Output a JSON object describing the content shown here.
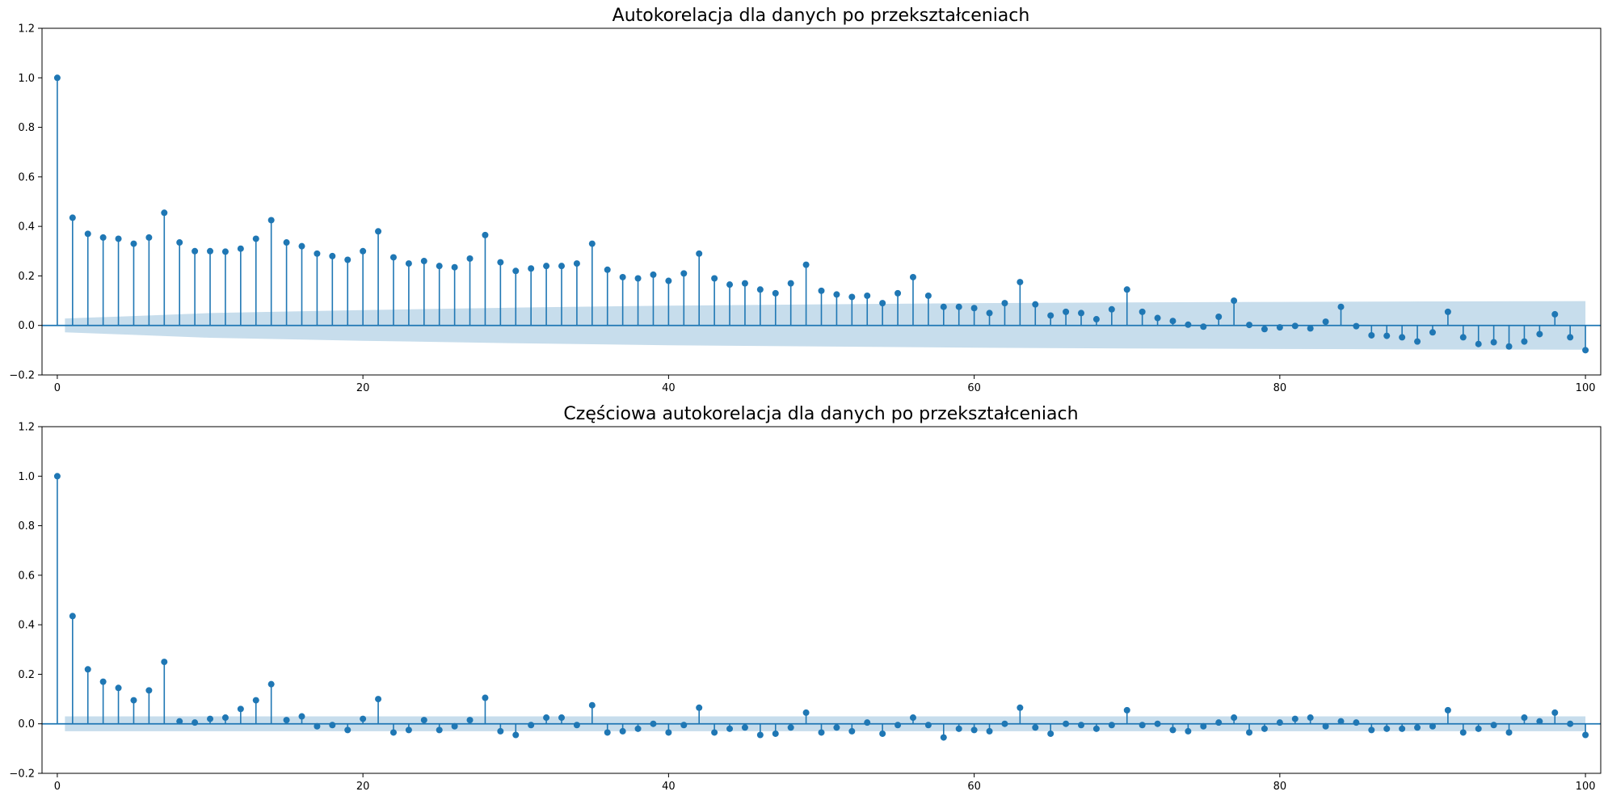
{
  "chart_data": [
    {
      "type": "stem",
      "title": "Autokorelacja dla danych po przekształceniach",
      "xlabel": "",
      "ylabel": "",
      "xlim": [
        -1,
        101
      ],
      "ylim": [
        -0.2,
        1.2
      ],
      "xticks": [
        0,
        20,
        40,
        60,
        80,
        100
      ],
      "yticks": [
        -0.2,
        0.0,
        0.2,
        0.4,
        0.6,
        0.8,
        1.0,
        1.2
      ],
      "ytick_labels": [
        "−0.2",
        "0.0",
        "0.2",
        "0.4",
        "0.6",
        "0.8",
        "1.0",
        "1.2"
      ],
      "grid": false,
      "color": "#1f77b4",
      "x": [
        0,
        1,
        2,
        3,
        4,
        5,
        6,
        7,
        8,
        9,
        10,
        11,
        12,
        13,
        14,
        15,
        16,
        17,
        18,
        19,
        20,
        21,
        22,
        23,
        24,
        25,
        26,
        27,
        28,
        29,
        30,
        31,
        32,
        33,
        34,
        35,
        36,
        37,
        38,
        39,
        40,
        41,
        42,
        43,
        44,
        45,
        46,
        47,
        48,
        49,
        50,
        51,
        52,
        53,
        54,
        55,
        56,
        57,
        58,
        59,
        60,
        61,
        62,
        63,
        64,
        65,
        66,
        67,
        68,
        69,
        70,
        71,
        72,
        73,
        74,
        75,
        76,
        77,
        78,
        79,
        80,
        81,
        82,
        83,
        84,
        85,
        86,
        87,
        88,
        89,
        90,
        91,
        92,
        93,
        94,
        95,
        96,
        97,
        98,
        99,
        100
      ],
      "values": [
        1.0,
        0.435,
        0.37,
        0.355,
        0.35,
        0.33,
        0.355,
        0.455,
        0.335,
        0.3,
        0.3,
        0.298,
        0.31,
        0.35,
        0.425,
        0.335,
        0.32,
        0.29,
        0.28,
        0.265,
        0.3,
        0.38,
        0.275,
        0.25,
        0.26,
        0.24,
        0.235,
        0.27,
        0.365,
        0.255,
        0.22,
        0.23,
        0.24,
        0.24,
        0.25,
        0.33,
        0.225,
        0.195,
        0.19,
        0.205,
        0.18,
        0.21,
        0.29,
        0.19,
        0.165,
        0.17,
        0.145,
        0.13,
        0.17,
        0.245,
        0.14,
        0.125,
        0.115,
        0.12,
        0.09,
        0.13,
        0.195,
        0.12,
        0.075,
        0.075,
        0.07,
        0.05,
        0.09,
        0.175,
        0.085,
        0.04,
        0.055,
        0.05,
        0.025,
        0.065,
        0.145,
        0.055,
        0.03,
        0.018,
        0.003,
        -0.005,
        0.035,
        0.1,
        0.002,
        -0.015,
        -0.008,
        -0.002,
        -0.012,
        0.015,
        0.075,
        -0.003,
        -0.04,
        -0.042,
        -0.048,
        -0.065,
        -0.028,
        0.055,
        -0.048,
        -0.075,
        -0.068,
        -0.085,
        -0.065,
        -0.035,
        0.045,
        -0.048,
        -0.1
      ],
      "confidence_upper": [
        [
          0.5,
          0.028
        ],
        [
          5,
          0.038
        ],
        [
          10,
          0.05
        ],
        [
          20,
          0.062
        ],
        [
          30,
          0.072
        ],
        [
          40,
          0.08
        ],
        [
          50,
          0.085
        ],
        [
          60,
          0.09
        ],
        [
          70,
          0.093
        ],
        [
          80,
          0.095
        ],
        [
          90,
          0.097
        ],
        [
          100,
          0.098
        ]
      ]
    },
    {
      "type": "stem",
      "title": "Częściowa autokorelacja dla danych po przekształceniach",
      "xlabel": "",
      "ylabel": "",
      "xlim": [
        -1,
        101
      ],
      "ylim": [
        -0.2,
        1.2
      ],
      "xticks": [
        0,
        20,
        40,
        60,
        80,
        100
      ],
      "yticks": [
        -0.2,
        0.0,
        0.2,
        0.4,
        0.6,
        0.8,
        1.0,
        1.2
      ],
      "ytick_labels": [
        "−0.2",
        "0.0",
        "0.2",
        "0.4",
        "0.6",
        "0.8",
        "1.0",
        "1.2"
      ],
      "grid": false,
      "color": "#1f77b4",
      "x": [
        0,
        1,
        2,
        3,
        4,
        5,
        6,
        7,
        8,
        9,
        10,
        11,
        12,
        13,
        14,
        15,
        16,
        17,
        18,
        19,
        20,
        21,
        22,
        23,
        24,
        25,
        26,
        27,
        28,
        29,
        30,
        31,
        32,
        33,
        34,
        35,
        36,
        37,
        38,
        39,
        40,
        41,
        42,
        43,
        44,
        45,
        46,
        47,
        48,
        49,
        50,
        51,
        52,
        53,
        54,
        55,
        56,
        57,
        58,
        59,
        60,
        61,
        62,
        63,
        64,
        65,
        66,
        67,
        68,
        69,
        70,
        71,
        72,
        73,
        74,
        75,
        76,
        77,
        78,
        79,
        80,
        81,
        82,
        83,
        84,
        85,
        86,
        87,
        88,
        89,
        90,
        91,
        92,
        93,
        94,
        95,
        96,
        97,
        98,
        99,
        100
      ],
      "values": [
        1.0,
        0.435,
        0.22,
        0.17,
        0.145,
        0.095,
        0.135,
        0.25,
        0.01,
        0.005,
        0.02,
        0.025,
        0.06,
        0.095,
        0.16,
        0.015,
        0.03,
        -0.01,
        -0.005,
        -0.025,
        0.02,
        0.1,
        -0.035,
        -0.025,
        0.015,
        -0.025,
        -0.01,
        0.015,
        0.105,
        -0.03,
        -0.045,
        -0.005,
        0.025,
        0.025,
        -0.005,
        0.075,
        -0.035,
        -0.03,
        -0.02,
        0.0,
        -0.035,
        -0.005,
        0.065,
        -0.035,
        -0.02,
        -0.015,
        -0.045,
        -0.04,
        -0.015,
        0.045,
        -0.035,
        -0.015,
        -0.03,
        0.005,
        -0.04,
        -0.005,
        0.025,
        -0.005,
        -0.055,
        -0.02,
        -0.025,
        -0.03,
        0.0,
        0.065,
        -0.015,
        -0.04,
        0.0,
        -0.005,
        -0.02,
        -0.005,
        0.055,
        -0.005,
        0.0,
        -0.025,
        -0.03,
        -0.01,
        0.005,
        0.025,
        -0.035,
        -0.02,
        0.005,
        0.02,
        0.025,
        -0.01,
        0.01,
        0.005,
        -0.025,
        -0.02,
        -0.02,
        -0.015,
        -0.01,
        0.055,
        -0.035,
        -0.02,
        -0.005,
        -0.035,
        0.025,
        0.01,
        0.045,
        0.0,
        -0.045
      ],
      "confidence_upper": [
        [
          0.5,
          0.03
        ],
        [
          100,
          0.03
        ]
      ]
    }
  ]
}
